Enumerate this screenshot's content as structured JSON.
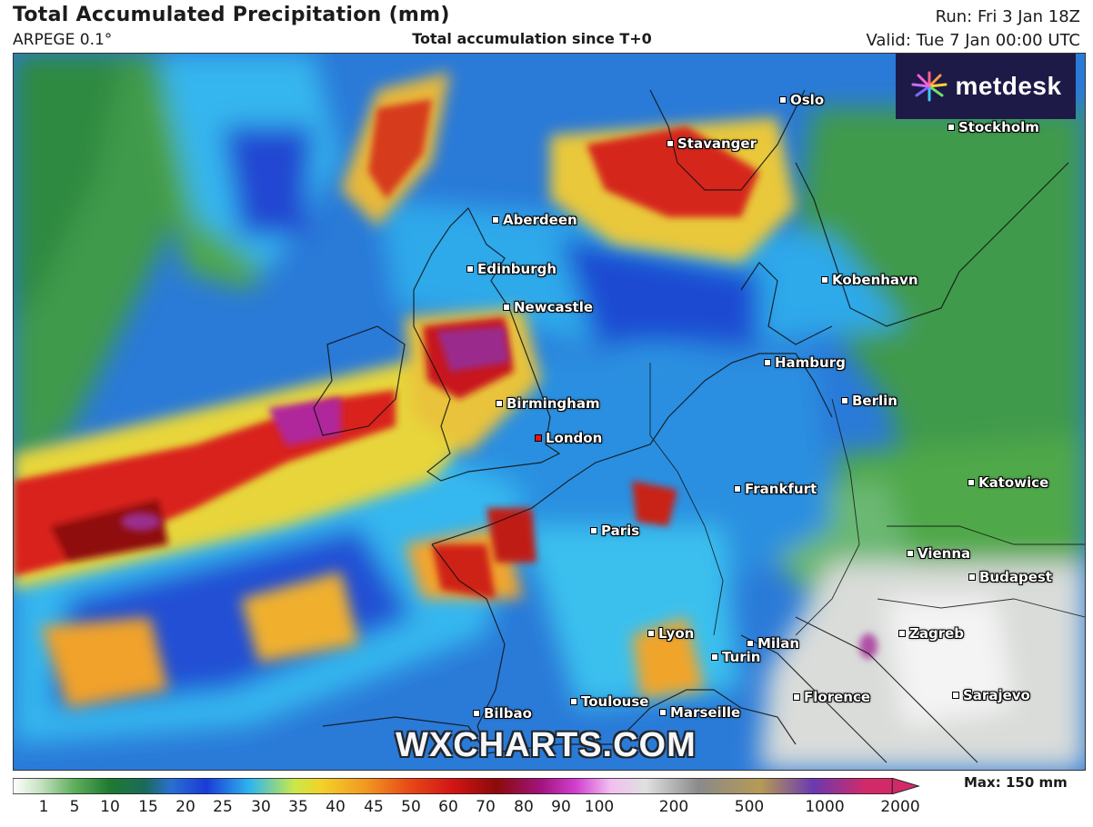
{
  "header": {
    "title": "Total Accumulated Precipitation (mm)",
    "model": "ARPEGE 0.1°",
    "subtitle": "Total accumulation since T+0",
    "run": "Run: Fri 3 Jan 18Z",
    "valid": "Valid: Tue 7 Jan 00:00 UTC"
  },
  "logo": {
    "text": "metdesk",
    "icon": "metdesk-burst-logo"
  },
  "watermark": "WXCHARTS.COM",
  "cities": [
    {
      "name": "Oslo",
      "type": "city"
    },
    {
      "name": "Stockholm",
      "type": "city"
    },
    {
      "name": "Stavanger",
      "type": "city"
    },
    {
      "name": "Aberdeen",
      "type": "city"
    },
    {
      "name": "Edinburgh",
      "type": "city"
    },
    {
      "name": "Newcastle",
      "type": "city"
    },
    {
      "name": "Kobenhavn",
      "type": "city"
    },
    {
      "name": "Hamburg",
      "type": "city"
    },
    {
      "name": "Berlin",
      "type": "city"
    },
    {
      "name": "Birmingham",
      "type": "city"
    },
    {
      "name": "London",
      "type": "capital"
    },
    {
      "name": "Frankfurt",
      "type": "city"
    },
    {
      "name": "Katowice",
      "type": "city"
    },
    {
      "name": "Paris",
      "type": "city"
    },
    {
      "name": "Vienna",
      "type": "city"
    },
    {
      "name": "Budapest",
      "type": "city"
    },
    {
      "name": "Lyon",
      "type": "city"
    },
    {
      "name": "Zagreb",
      "type": "city"
    },
    {
      "name": "Milan",
      "type": "city"
    },
    {
      "name": "Turin",
      "type": "city"
    },
    {
      "name": "Florence",
      "type": "city"
    },
    {
      "name": "Sarajevo",
      "type": "city"
    },
    {
      "name": "Bilbao",
      "type": "city"
    },
    {
      "name": "Toulouse",
      "type": "city"
    },
    {
      "name": "Marseille",
      "type": "city"
    }
  ],
  "legend": {
    "labels": [
      "1",
      "5",
      "10",
      "15",
      "20",
      "25",
      "30",
      "35",
      "40",
      "45",
      "50",
      "60",
      "70",
      "80",
      "90",
      "100",
      "200",
      "500",
      "1000",
      "2000"
    ],
    "max_text": "Max: 150 mm",
    "unit": "mm",
    "colors": [
      "#ffffff",
      "#b9d7b4",
      "#3e9a3f",
      "#1e6b2f",
      "#2b6fd0",
      "#1e3fd8",
      "#2fb5ef",
      "#e9e33a",
      "#f4a92a",
      "#e8571d",
      "#d01818",
      "#9e0b0b",
      "#a2137c",
      "#d13fcf",
      "#f2b3ee",
      "#dedede",
      "#8a8a8a",
      "#c4a35a",
      "#6a3ab0",
      "#d22a68"
    ]
  }
}
